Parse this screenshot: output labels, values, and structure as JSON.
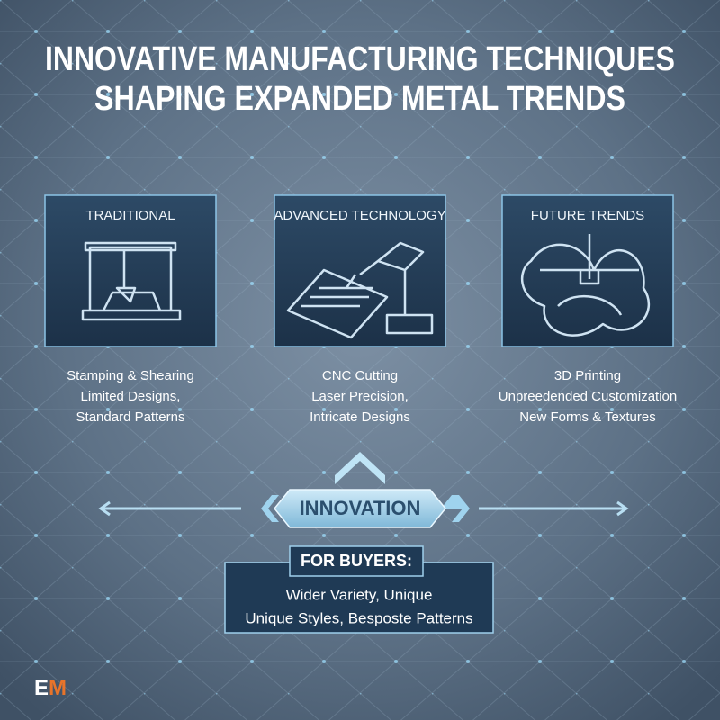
{
  "header": {
    "title_lines": [
      "INNOVATIVE MANUFACTURING TECHNIQUES",
      "SHAPING EXPANDED METAL TRENDS"
    ]
  },
  "panels": [
    {
      "label": "TRADITIONAL",
      "lines": [
        "Stamping & Shearing",
        "Limited Designs,",
        "Standard Patterns"
      ]
    },
    {
      "label": "ADVANCED TECHNOLOGY",
      "lines": [
        "CNC Cutting",
        "Laser Precision,",
        "Intricate Designs"
      ]
    },
    {
      "label": "FUTURE TRENDS",
      "lines": [
        "3D Printing",
        "Unpreedended Customization",
        "New Forms & Textures"
      ]
    }
  ],
  "innovation": "INNOVATION",
  "buyers": {
    "title": "FOR BUYERS:",
    "lines": [
      "Wider Variety, Unique",
      "Unique Styles, Besposte Patterns"
    ]
  },
  "logo": {
    "left": "E",
    "right": "M"
  }
}
